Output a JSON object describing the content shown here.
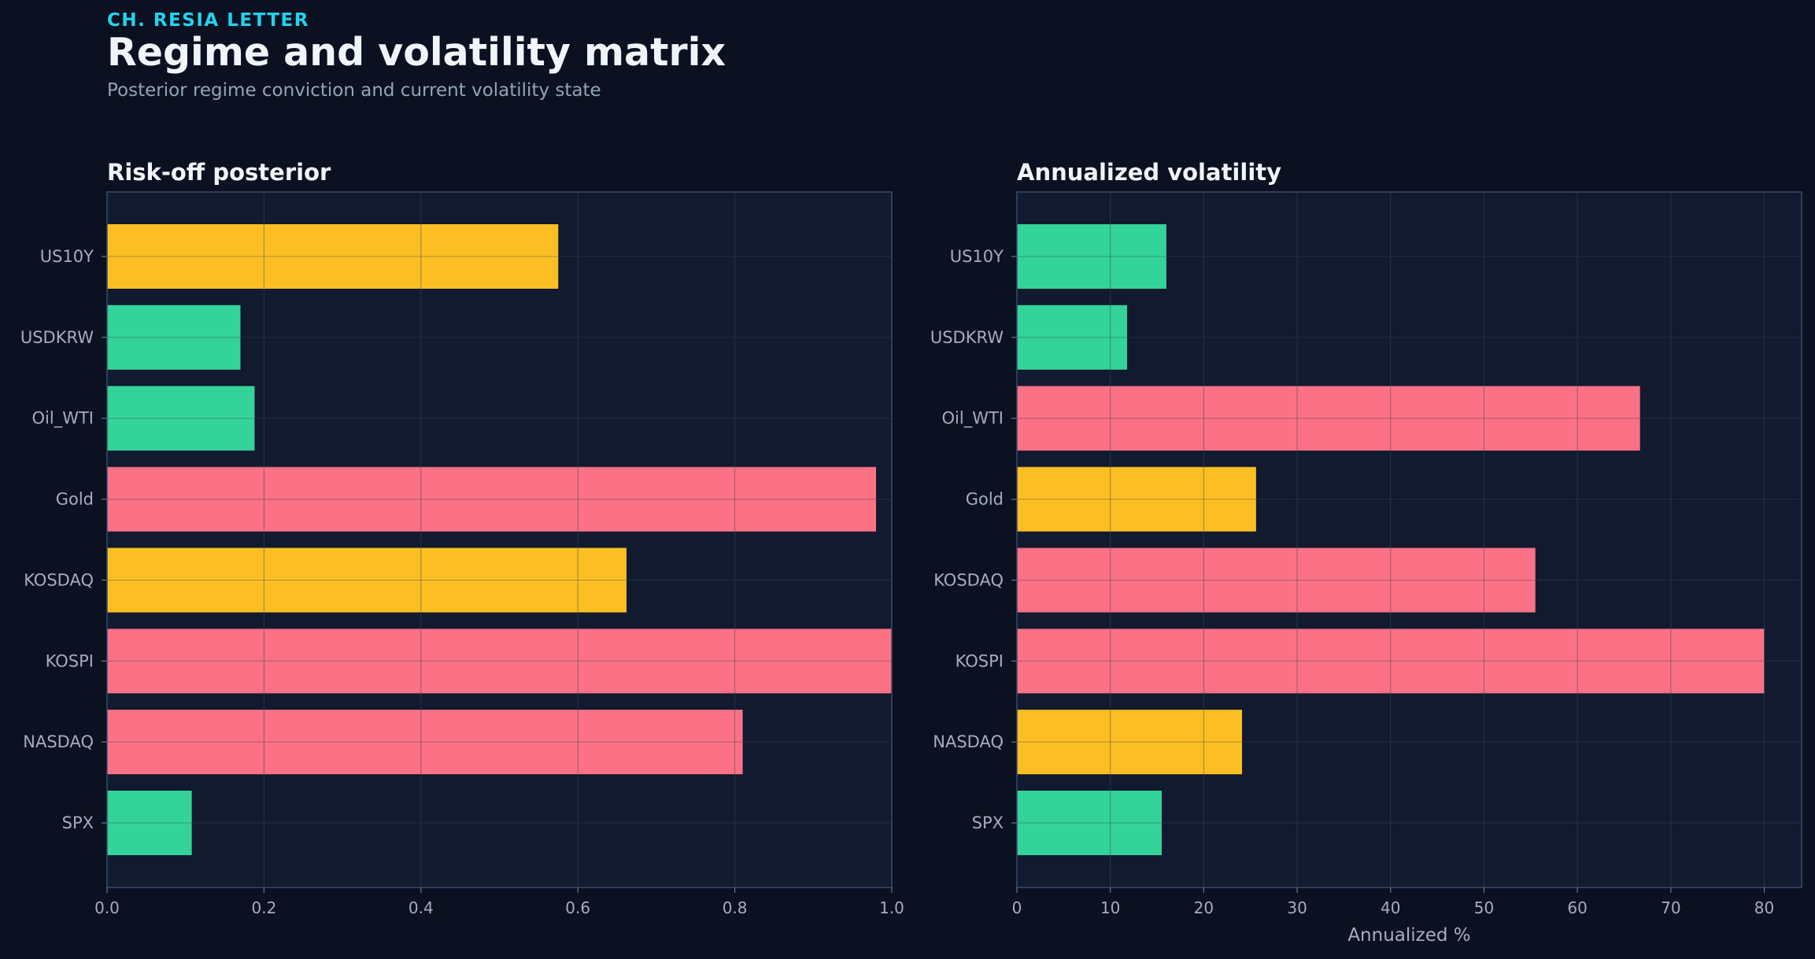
{
  "header": {
    "kicker": "CH. RESIA LETTER",
    "title": "Regime and volatility matrix",
    "subtitle": "Posterior regime conviction and current volatility state"
  },
  "colors": {
    "background": "#0b1120",
    "panel": "#111a2e",
    "calm": "#34d399",
    "neutral": "#fbbf24",
    "stress": "#fb7185"
  },
  "chart_data": [
    {
      "type": "bar",
      "orientation": "horizontal",
      "title": "Risk-off posterior",
      "xlabel": "",
      "ylabel": "",
      "categories": [
        "US10Y",
        "USDKRW",
        "Oil_WTI",
        "Gold",
        "KOSDAQ",
        "KOSPI",
        "NASDAQ",
        "SPX"
      ],
      "values": [
        0.575,
        0.17,
        0.188,
        0.98,
        0.662,
        1.0,
        0.81,
        0.108
      ],
      "bar_colors": [
        "neutral",
        "calm",
        "calm",
        "stress",
        "neutral",
        "stress",
        "stress",
        "calm"
      ],
      "xlim": [
        0,
        1.0
      ],
      "xticks": [
        0.0,
        0.2,
        0.4,
        0.6,
        0.8,
        1.0
      ],
      "xtick_labels": [
        "0.0",
        "0.2",
        "0.4",
        "0.6",
        "0.8",
        "1.0"
      ],
      "grid": true
    },
    {
      "type": "bar",
      "orientation": "horizontal",
      "title": "Annualized volatility",
      "xlabel": "Annualized %",
      "ylabel": "",
      "categories": [
        "US10Y",
        "USDKRW",
        "Oil_WTI",
        "Gold",
        "KOSDAQ",
        "KOSPI",
        "NASDAQ",
        "SPX"
      ],
      "values": [
        16.0,
        11.8,
        66.7,
        25.6,
        55.5,
        80.0,
        24.1,
        15.5
      ],
      "bar_colors": [
        "calm",
        "calm",
        "stress",
        "neutral",
        "stress",
        "stress",
        "neutral",
        "calm"
      ],
      "xlim": [
        0,
        84
      ],
      "xticks": [
        0,
        10,
        20,
        30,
        40,
        50,
        60,
        70,
        80
      ],
      "xtick_labels": [
        "0",
        "10",
        "20",
        "30",
        "40",
        "50",
        "60",
        "70",
        "80"
      ],
      "grid": true
    }
  ]
}
